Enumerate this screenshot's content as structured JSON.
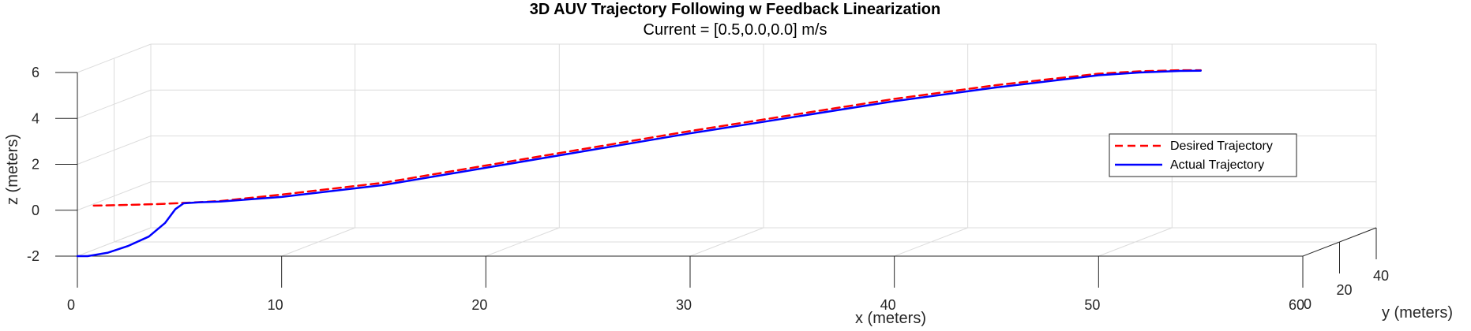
{
  "chart_data": {
    "type": "line",
    "title": "3D AUV Trajectory Following w Feedback Linearization",
    "subtitle": "Current = [0.5,0.0,0.0] m/s",
    "xlabel": "x (meters)",
    "ylabel": "y (meters)",
    "zlabel": "z (meters)",
    "xlim": [
      0,
      60
    ],
    "ylim": [
      0,
      40
    ],
    "zlim": [
      -2,
      6
    ],
    "x_ticks": [
      "0",
      "10",
      "20",
      "30",
      "40",
      "50",
      "60"
    ],
    "y_ticks": [
      "0",
      "20",
      "40"
    ],
    "z_ticks": [
      "-2",
      "0",
      "2",
      "4",
      "6"
    ],
    "grid": true,
    "legend_position": "right",
    "series": [
      {
        "name": "Desired Trajectory",
        "color": "#ff0000",
        "style": "dashed",
        "x": [
          0.8,
          2,
          4,
          5.5,
          7,
          10,
          15,
          20,
          25,
          30,
          35,
          40,
          45,
          50,
          52,
          54,
          55
        ],
        "y": [
          0,
          0,
          0,
          0,
          0,
          0,
          0,
          0,
          0,
          0,
          0,
          0,
          0,
          0,
          0,
          0,
          0
        ],
        "z": [
          0.2,
          0.22,
          0.27,
          0.33,
          0.4,
          0.68,
          1.2,
          1.95,
          2.7,
          3.45,
          4.15,
          4.85,
          5.45,
          5.95,
          6.05,
          6.1,
          6.1
        ]
      },
      {
        "name": "Actual Trajectory",
        "color": "#0000ff",
        "style": "solid",
        "x": [
          0,
          0.5,
          1.5,
          2.5,
          3.5,
          4.3,
          4.8,
          5.2,
          6,
          7,
          10,
          15,
          20,
          25,
          30,
          35,
          40,
          45,
          50,
          52,
          54,
          55
        ],
        "y": [
          0,
          0,
          0,
          0,
          0,
          0,
          0,
          0,
          0,
          0,
          0,
          0,
          0,
          0,
          0,
          0,
          0,
          0,
          0,
          0,
          0,
          0
        ],
        "z": [
          -2,
          -2,
          -1.85,
          -1.55,
          -1.15,
          -0.55,
          0.05,
          0.3,
          0.35,
          0.38,
          0.58,
          1.1,
          1.85,
          2.6,
          3.35,
          4.05,
          4.75,
          5.35,
          5.88,
          6.0,
          6.07,
          6.08
        ]
      }
    ]
  }
}
